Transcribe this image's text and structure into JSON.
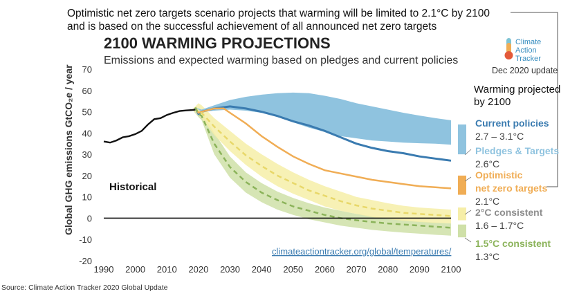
{
  "chart_data": {
    "type": "line",
    "note": "Optimistic net zero targets scenario projects that warming will be limited to 2.1°C by 2100 and is based on the successful achievement of all announced net zero targets",
    "title": "2100 WARMING PROJECTIONS",
    "subtitle": "Emissions and expected warming based on pledges and current policies",
    "ylabel": "Global GHG emissions  GtCO₂e / year",
    "xlabel": "",
    "xlim": [
      1990,
      2100
    ],
    "ylim": [
      -20,
      70
    ],
    "xticks": [
      1990,
      2000,
      2010,
      2020,
      2030,
      2040,
      2050,
      2060,
      2070,
      2080,
      2090,
      2100
    ],
    "yticks": [
      70,
      60,
      50,
      40,
      30,
      20,
      10,
      0,
      -10,
      -20
    ],
    "grid": false,
    "historical_label": "Historical",
    "url": "climateactiontracker.org/global/temperatures/",
    "source": "Source: Climate Action Tracker 2020 Global Update",
    "logo": {
      "line1": "Climate",
      "line2": "Action",
      "line3": "Tracker"
    },
    "update": "Dec 2020 update",
    "legend_title": "Warming projected\nby 2100",
    "historical": {
      "x": [
        1990,
        1992,
        1994,
        1996,
        1998,
        2000,
        2002,
        2004,
        2006,
        2008,
        2010,
        2012,
        2014,
        2016,
        2018,
        2019
      ],
      "y": [
        36,
        35.5,
        36.5,
        38,
        38.5,
        39.5,
        41,
        44,
        46.5,
        47,
        48.5,
        49.5,
        50.3,
        50.6,
        50.8,
        51
      ]
    },
    "series": [
      {
        "name": "Current policies",
        "range": "2.7 – 3.1°C",
        "color": "#3a7bb0",
        "band_color": "#8fc3df",
        "line": {
          "x": [
            2019,
            2020,
            2021,
            2025,
            2030,
            2035,
            2040,
            2045,
            2050,
            2055,
            2060,
            2065,
            2070,
            2075,
            2080,
            2085,
            2090,
            2095,
            2100
          ],
          "y": [
            52,
            49,
            50,
            51.5,
            52.5,
            51.5,
            50,
            48,
            45.5,
            43.5,
            41,
            38,
            35,
            33,
            31.5,
            30.5,
            29,
            28,
            27
          ]
        },
        "band_upper": {
          "x": [
            2019,
            2021,
            2025,
            2030,
            2035,
            2040,
            2045,
            2050,
            2055,
            2060,
            2065,
            2070,
            2075,
            2080,
            2085,
            2090,
            2095,
            2100
          ],
          "y": [
            52,
            51,
            53,
            55.5,
            57,
            58,
            58.7,
            59,
            58.7,
            57.5,
            56,
            54,
            52.5,
            51,
            49.5,
            48.2,
            47,
            46
          ]
        },
        "band_lower": {
          "x": [
            2019,
            2021,
            2025,
            2030,
            2035,
            2040,
            2045,
            2050,
            2055,
            2060,
            2065,
            2070,
            2075,
            2080,
            2085,
            2090,
            2095,
            2100
          ],
          "y": [
            52,
            50,
            50.5,
            51,
            50.5,
            49.5,
            47.5,
            45,
            42.5,
            40.5,
            38.5,
            37.5,
            36.5,
            36,
            35.5,
            35.2,
            35,
            34.5
          ]
        }
      },
      {
        "name": "Pledges & Targets",
        "range": "2.6°C",
        "color": "#a9d4ea"
      },
      {
        "name": "Optimistic\nnet zero targets",
        "range": "2.1°C",
        "color": "#f0ad55",
        "line": {
          "x": [
            2019,
            2020,
            2021,
            2025,
            2028,
            2030,
            2035,
            2040,
            2045,
            2050,
            2055,
            2060,
            2065,
            2070,
            2075,
            2080,
            2085,
            2090,
            2095,
            2100
          ],
          "y": [
            52,
            49.5,
            50,
            51.5,
            51.5,
            49.5,
            44.5,
            38.5,
            33.5,
            29,
            25.5,
            22.5,
            21,
            19.5,
            18,
            17,
            16,
            15,
            14.5,
            14
          ]
        }
      },
      {
        "name": "2°C consistent",
        "range": "1.6 – 1.7°C",
        "color": "#e8d86a",
        "band_color": "#f6eea8",
        "line": {
          "x": [
            2019,
            2020,
            2021,
            2025,
            2030,
            2035,
            2040,
            2045,
            2050,
            2055,
            2060,
            2065,
            2070,
            2075,
            2080,
            2085,
            2090,
            2095,
            2100
          ],
          "y": [
            52,
            49.5,
            49.5,
            43,
            36,
            29.5,
            24.5,
            20,
            16.5,
            13,
            10.5,
            8,
            6,
            4.5,
            3.5,
            2.5,
            2,
            1.5,
            1
          ]
        },
        "band_upper": {
          "x": [
            2018,
            2020,
            2021,
            2025,
            2030,
            2035,
            2040,
            2045,
            2050,
            2055,
            2060,
            2065,
            2070,
            2075,
            2080,
            2085,
            2090,
            2095,
            2100
          ],
          "y": [
            51,
            54,
            53,
            47,
            41,
            35,
            30,
            25.5,
            21.5,
            18,
            15,
            12.5,
            10,
            8.5,
            7,
            5.8,
            5,
            4.5,
            4
          ]
        },
        "band_lower": {
          "x": [
            2018,
            2020,
            2021,
            2025,
            2030,
            2035,
            2040,
            2045,
            2050,
            2055,
            2060,
            2065,
            2070,
            2075,
            2080,
            2085,
            2090,
            2095,
            2100
          ],
          "y": [
            51,
            48.5,
            47,
            39,
            31.5,
            25,
            19.5,
            15,
            11.5,
            8.5,
            5.5,
            3.5,
            2,
            0.5,
            -0.5,
            -1.2,
            -1.8,
            -2.2,
            -2.5
          ]
        }
      },
      {
        "name": "1.5°C consistent",
        "range": "1.3°C",
        "color": "#8bb35a",
        "band_color": "#cfe0a8",
        "line": {
          "x": [
            2019,
            2020,
            2021,
            2025,
            2030,
            2035,
            2040,
            2045,
            2050,
            2055,
            2060,
            2065,
            2070,
            2075,
            2080,
            2085,
            2090,
            2095,
            2100
          ],
          "y": [
            52,
            49,
            48,
            35,
            24,
            17,
            12,
            8.5,
            5.5,
            3.5,
            1.5,
            0,
            -1,
            -1.8,
            -2.5,
            -3,
            -3.5,
            -4,
            -4.5
          ]
        },
        "band_upper": {
          "x": [
            2018,
            2020,
            2021,
            2025,
            2030,
            2035,
            2040,
            2045,
            2050,
            2055,
            2060,
            2065,
            2070,
            2075,
            2080,
            2085,
            2090,
            2095,
            2100
          ],
          "y": [
            51,
            51,
            50,
            40,
            29,
            21.5,
            16.5,
            12.5,
            9.5,
            7,
            5,
            3.5,
            2,
            1,
            0,
            -0.8,
            -1.5,
            -2,
            -2.5
          ]
        },
        "band_lower": {
          "x": [
            2018,
            2020,
            2021,
            2025,
            2030,
            2035,
            2040,
            2045,
            2050,
            2055,
            2060,
            2065,
            2070,
            2075,
            2080,
            2085,
            2090,
            2095,
            2100
          ],
          "y": [
            51,
            47.5,
            46,
            30,
            19,
            12,
            7.5,
            4,
            1.5,
            -0.5,
            -2,
            -3.5,
            -4.5,
            -5.5,
            -6.2,
            -6.8,
            -7.3,
            -7.8,
            -8.2
          ]
        }
      }
    ]
  }
}
